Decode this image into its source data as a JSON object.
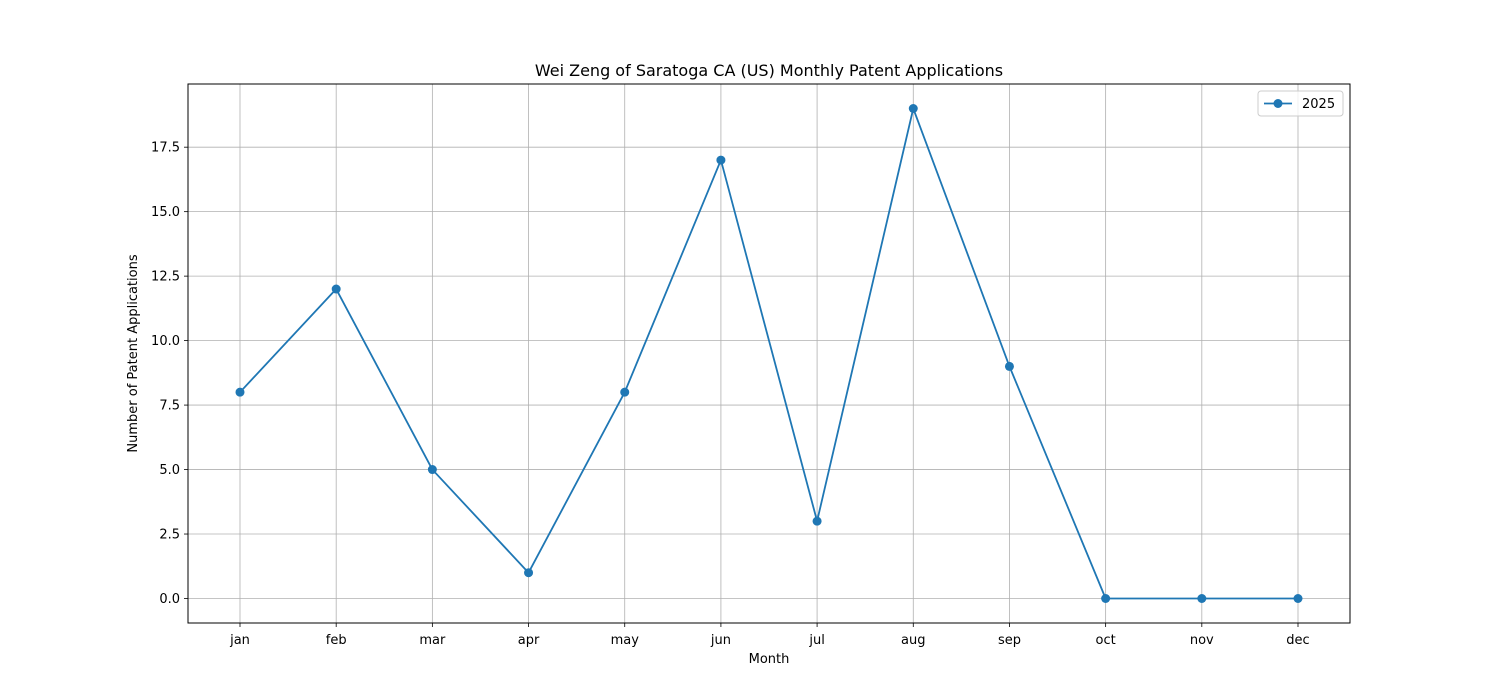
{
  "chart_data": {
    "type": "line",
    "title": "Wei Zeng of Saratoga CA (US) Monthly Patent Applications",
    "xlabel": "Month",
    "ylabel": "Number of Patent Applications",
    "categories": [
      "jan",
      "feb",
      "mar",
      "apr",
      "may",
      "jun",
      "jul",
      "aug",
      "sep",
      "oct",
      "nov",
      "dec"
    ],
    "series": [
      {
        "name": "2025",
        "values": [
          8,
          12,
          5,
          1,
          8,
          17,
          3,
          19,
          9,
          0,
          0,
          0
        ],
        "color": "#1f77b4"
      }
    ],
    "ylim": [
      -0.95,
      19.95
    ],
    "yticks": [
      "0.0",
      "2.5",
      "5.0",
      "7.5",
      "10.0",
      "12.5",
      "15.0",
      "17.5"
    ],
    "grid": true,
    "legend_position": "top-right"
  }
}
